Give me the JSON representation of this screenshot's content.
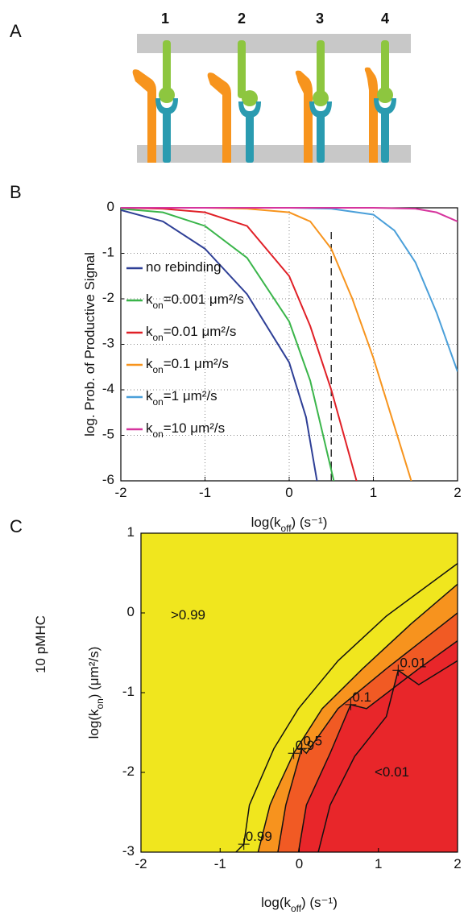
{
  "diagram": {
    "panel_label": "A",
    "receptors": [
      "1",
      "2",
      "3",
      "4"
    ]
  },
  "chart_data": [
    {
      "type": "line",
      "panel_label": "B",
      "xlabel": "log(koff) (s⁻¹)",
      "ylabel": "log. Prob. of Productive Signal",
      "xlim": [
        -2,
        2
      ],
      "ylim": [
        -6,
        0
      ],
      "xticks": [
        -2,
        -1,
        0,
        1,
        2
      ],
      "yticks": [
        -6,
        -5,
        -4,
        -3,
        -2,
        -1,
        0
      ],
      "grid": true,
      "legend_loc": "upper left",
      "vline": {
        "x": 0.5,
        "ylim": [
          -6,
          -0.5
        ]
      },
      "series": [
        {
          "name": "no rebinding",
          "color": "#2e3f96",
          "x": [
            -2,
            -1.5,
            -1,
            -0.5,
            0,
            0.2,
            0.33
          ],
          "values": [
            -0.05,
            -0.3,
            -0.9,
            -1.9,
            -3.4,
            -4.6,
            -6
          ]
        },
        {
          "name": "kon=0.001 μm²/s",
          "color": "#3ab54a",
          "x": [
            -2,
            -1.5,
            -1,
            -0.5,
            0,
            0.25,
            0.53
          ],
          "values": [
            -0.02,
            -0.1,
            -0.4,
            -1.1,
            -2.5,
            -3.8,
            -6
          ]
        },
        {
          "name": "kon=0.01 μm²/s",
          "color": "#e02027",
          "x": [
            -2,
            -1.5,
            -1,
            -0.5,
            0,
            0.25,
            0.5,
            0.8
          ],
          "values": [
            0,
            -0.02,
            -0.1,
            -0.4,
            -1.5,
            -2.6,
            -4,
            -6
          ]
        },
        {
          "name": "kon=0.1 μm²/s",
          "color": "#f7941d",
          "x": [
            -2,
            -1,
            -0.5,
            0,
            0.25,
            0.5,
            0.75,
            1,
            1.25,
            1.45
          ],
          "values": [
            0,
            0,
            -0.02,
            -0.1,
            -0.3,
            -0.9,
            -2,
            -3.3,
            -4.8,
            -6
          ]
        },
        {
          "name": "kon=1 μm²/s",
          "color": "#4a9fd9",
          "x": [
            -2,
            -0.5,
            0,
            0.5,
            1,
            1.25,
            1.5,
            1.75,
            2
          ],
          "values": [
            0,
            0,
            0,
            -0.02,
            -0.15,
            -0.5,
            -1.2,
            -2.3,
            -3.6
          ]
        },
        {
          "name": "kon=10 μm²/s",
          "color": "#d6349d",
          "x": [
            -2,
            0,
            1,
            1.5,
            1.75,
            2
          ],
          "values": [
            0,
            0,
            0,
            -0.02,
            -0.1,
            -0.3
          ]
        }
      ]
    },
    {
      "type": "contour",
      "panel_label": "C",
      "side_label": "10 pMHC",
      "xlabel": "log(koff) (s⁻¹)",
      "ylabel": "log(kon) (μm²/s)",
      "xlim": [
        -2,
        2
      ],
      "ylim": [
        -3,
        1
      ],
      "xticks": [
        -2,
        -1,
        0,
        1,
        2
      ],
      "yticks": [
        -3,
        -2,
        -1,
        0,
        1
      ],
      "grid": false,
      "background_color": "#f0e61e",
      "region_labels": [
        ">0.99",
        "<0.01"
      ],
      "contours": [
        {
          "level": 0.99,
          "fill": "#f0e61e",
          "x": [
            -0.8,
            -0.7,
            -0.63,
            -0.32,
            -0.01,
            0.49,
            1.1,
            2
          ],
          "values": [
            -3,
            -2.9,
            -2.41,
            -1.7,
            -1.2,
            -0.6,
            -0.04,
            0.62
          ]
        },
        {
          "level": 0.9,
          "fill": "#f7931e",
          "x": [
            -0.52,
            -0.37,
            -0.3,
            -0.07,
            0.29,
            0.8,
            1.41,
            2
          ],
          "values": [
            -3,
            -2.41,
            -2.25,
            -1.76,
            -1.2,
            -0.7,
            -0.14,
            0.36
          ]
        },
        {
          "level": 0.5,
          "fill": "#f15a24",
          "x": [
            -0.27,
            -0.17,
            0.03,
            0.09,
            0.49,
            1.1,
            2
          ],
          "values": [
            -3,
            -2.41,
            -1.7,
            -1.76,
            -1.2,
            -0.7,
            0
          ]
        },
        {
          "level": 0.1,
          "fill": "#e8262a",
          "x": [
            -0.01,
            0.09,
            0.39,
            0.65,
            0.85,
            1.51,
            2
          ],
          "values": [
            -3,
            -2.41,
            -1.76,
            -1.15,
            -1.2,
            -0.7,
            -0.35
          ]
        },
        {
          "level": 0.01,
          "fill": "#e8262a",
          "x": [
            0.24,
            0.39,
            0.7,
            1.1,
            1.25,
            1.51,
            2
          ],
          "values": [
            -3,
            -2.41,
            -1.8,
            -1.3,
            -0.72,
            -0.9,
            -0.6
          ]
        }
      ]
    }
  ]
}
